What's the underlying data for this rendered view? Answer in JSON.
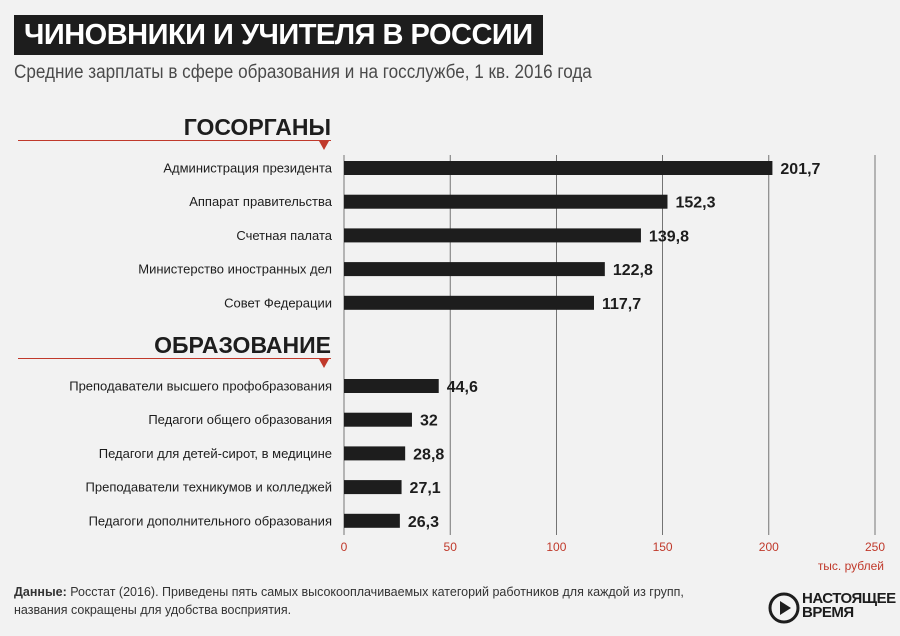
{
  "header": {
    "title": "ЧИНОВНИКИ И УЧИТЕЛЯ В РОССИИ",
    "subtitle": "Средние зарплаты в сфере образования и на госслужбе, 1 кв. 2016 года"
  },
  "chart_data": {
    "type": "bar",
    "orientation": "horizontal",
    "xlim": [
      0,
      250
    ],
    "x_ticks": [
      "0",
      "50",
      "100",
      "150",
      "200",
      "250"
    ],
    "x_unit_label": "тыс. рублей",
    "grid": true,
    "groups": [
      {
        "name": "ГОСОРГАНЫ",
        "categories": [
          "Администрация президента",
          "Аппарат правительства",
          "Счетная палата",
          "Министерство иностранных дел",
          "Совет Федерации"
        ],
        "values": [
          201.7,
          152.3,
          139.8,
          122.8,
          117.7
        ],
        "labels": [
          "201,7",
          "152,3",
          "139,8",
          "122,8",
          "117,7"
        ]
      },
      {
        "name": "ОБРАЗОВАНИЕ",
        "categories": [
          "Преподаватели высшего профобразования",
          "Педагоги общего образования",
          "Педагоги для детей-сирот, в медицине",
          "Преподаватели техникумов и колледжей",
          "Педагоги дополнительного образования"
        ],
        "values": [
          44.6,
          32,
          28.8,
          27.1,
          26.3
        ],
        "labels": [
          "44,6",
          "32",
          "28,8",
          "27,1",
          "26,3"
        ]
      }
    ]
  },
  "footer": {
    "source_label": "Данные:",
    "source_text": "Росстат (2016). Приведены пять самых высокооплачиваемых категорий работников для каждой из групп, названия сокращены для удобства восприятия."
  },
  "logo": {
    "line1": "настоящее",
    "line2": "время"
  },
  "colors": {
    "bar": "#1d1d1d",
    "accent": "#c0392b",
    "axis_text": "#c0392b",
    "grid": "#555555",
    "background": "#f2f2f2"
  }
}
